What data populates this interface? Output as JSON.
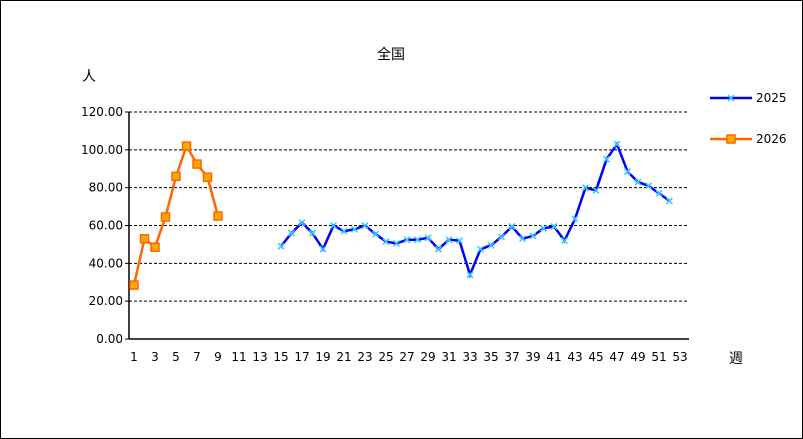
{
  "chart_data": {
    "type": "line",
    "title": "全国",
    "ylabel": "人",
    "xlabel": "週",
    "ylim": [
      0,
      120
    ],
    "yticks": [
      "0.00",
      "20.00",
      "40.00",
      "60.00",
      "80.00",
      "100.00",
      "120.00"
    ],
    "xticks": [
      1,
      3,
      5,
      7,
      9,
      11,
      13,
      15,
      17,
      19,
      21,
      23,
      25,
      27,
      29,
      31,
      33,
      35,
      37,
      39,
      41,
      43,
      45,
      47,
      49,
      51,
      53
    ],
    "xlim": [
      1,
      53
    ],
    "grid": true,
    "legend": "right",
    "series": [
      {
        "name": "2025",
        "color": "#0000ff",
        "marker": "x",
        "x": [
          15,
          16,
          17,
          18,
          19,
          20,
          21,
          22,
          23,
          24,
          25,
          26,
          27,
          28,
          29,
          30,
          31,
          32,
          33,
          34,
          35,
          36,
          37,
          38,
          39,
          40,
          41,
          42,
          43,
          44,
          45,
          46,
          47,
          48,
          49,
          50,
          51,
          52
        ],
        "values": [
          49,
          56,
          61.5,
          56,
          47.5,
          60,
          57,
          58,
          60,
          55.5,
          51.5,
          50.5,
          52.5,
          52.5,
          53.5,
          47.5,
          52.5,
          52,
          34,
          47.5,
          49.5,
          54,
          59.5,
          53,
          54.5,
          58.5,
          59.5,
          52,
          63.5,
          80,
          78.5,
          95,
          103,
          88.5,
          83,
          81,
          77,
          73
        ]
      },
      {
        "name": "2026",
        "color": "#ff6600",
        "marker": "square",
        "x": [
          1,
          2,
          3,
          4,
          5,
          6,
          7,
          8,
          9
        ],
        "values": [
          28.5,
          53,
          48.5,
          64.5,
          86,
          102,
          92.5,
          85.5,
          65
        ]
      }
    ]
  }
}
